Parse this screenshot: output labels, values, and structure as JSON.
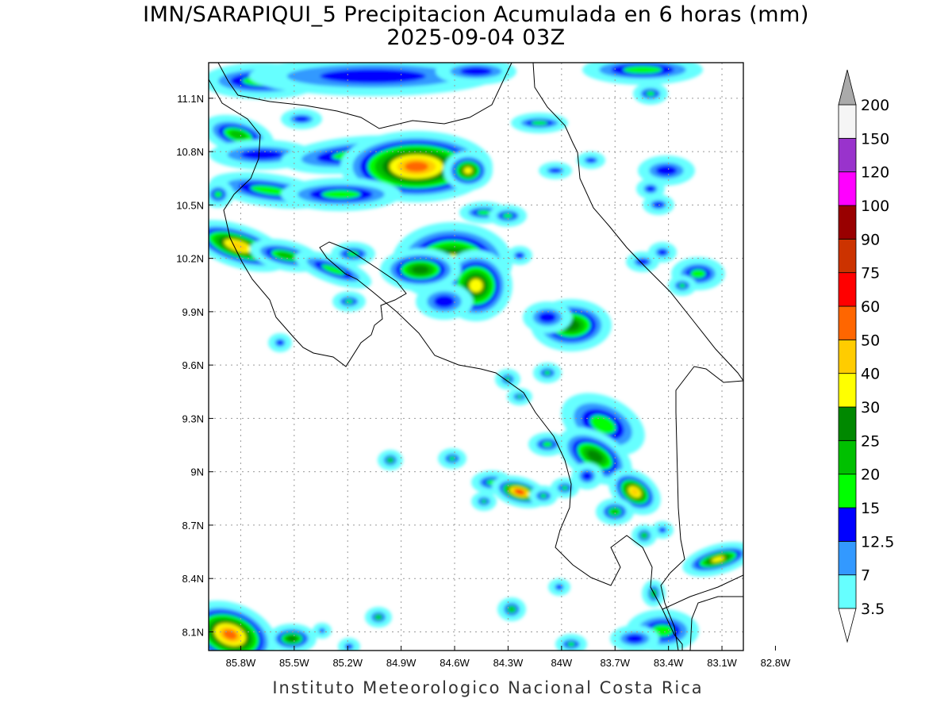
{
  "title": {
    "line1": "IMN/SARAPIQUI_5 Precipitacion Acumulada en 6 horas (mm)",
    "line2": "2025-09-04 03Z"
  },
  "footer": "Instituto Meteorologico Nacional Costa Rica",
  "map": {
    "lat_range": [
      7.995,
      11.3
    ],
    "lon_range": [
      -85.98,
      -82.98
    ],
    "y_ticks": [
      {
        "value": 11.1,
        "label": "11.1N"
      },
      {
        "value": 10.8,
        "label": "10.8N"
      },
      {
        "value": 10.5,
        "label": "10.5N"
      },
      {
        "value": 10.2,
        "label": "10.2N"
      },
      {
        "value": 9.9,
        "label": "9.9N"
      },
      {
        "value": 9.6,
        "label": "9.6N"
      },
      {
        "value": 9.3,
        "label": "9.3N"
      },
      {
        "value": 9.0,
        "label": "9N"
      },
      {
        "value": 8.7,
        "label": "8.7N"
      },
      {
        "value": 8.4,
        "label": "8.4N"
      },
      {
        "value": 8.1,
        "label": "8.1N"
      }
    ],
    "x_ticks": [
      {
        "value": -85.8,
        "label": "85.8W"
      },
      {
        "value": -85.5,
        "label": "85.5W"
      },
      {
        "value": -85.2,
        "label": "85.2W"
      },
      {
        "value": -84.9,
        "label": "84.9W"
      },
      {
        "value": -84.6,
        "label": "84.6W"
      },
      {
        "value": -84.3,
        "label": "84.3W"
      },
      {
        "value": -84.0,
        "label": "84W"
      },
      {
        "value": -83.7,
        "label": "83.7W"
      },
      {
        "value": -83.4,
        "label": "83.4W"
      },
      {
        "value": -83.1,
        "label": "83.1W"
      },
      {
        "value": -82.8,
        "label": "82.8W"
      }
    ],
    "grid": true
  },
  "colorbar": {
    "levels": [
      {
        "label": "3.5",
        "color": "#66ffff"
      },
      {
        "label": "7",
        "color": "#3399ff"
      },
      {
        "label": "12.5",
        "color": "#0000ff"
      },
      {
        "label": "15",
        "color": "#00ff00"
      },
      {
        "label": "20",
        "color": "#00c000"
      },
      {
        "label": "25",
        "color": "#008800"
      },
      {
        "label": "30",
        "color": "#ffff00"
      },
      {
        "label": "40",
        "color": "#ffcc00"
      },
      {
        "label": "50",
        "color": "#ff6600"
      },
      {
        "label": "60",
        "color": "#ff0000"
      },
      {
        "label": "75",
        "color": "#cc3300"
      },
      {
        "label": "90",
        "color": "#990000"
      },
      {
        "label": "100",
        "color": "#ff00ff"
      },
      {
        "label": "120",
        "color": "#9933cc"
      },
      {
        "label": "150",
        "color": "#f5f5f5"
      },
      {
        "label": "200",
        "color": "#aaaaaa"
      }
    ],
    "under_color": "#ffffff",
    "over_color": "#aaaaaa"
  }
}
